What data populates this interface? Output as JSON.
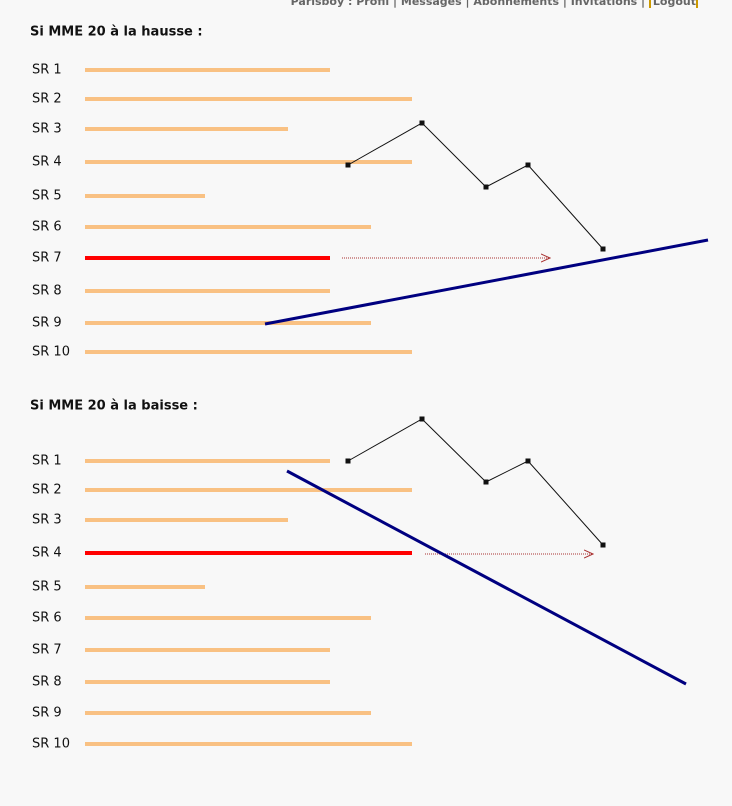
{
  "nav": {
    "user": "Parisboy : Profil",
    "links": [
      "Messages",
      "Abonnements",
      "Invitations",
      "Logout"
    ]
  },
  "sections": [
    {
      "title": "Si MME 20 à la hausse :",
      "labels": [
        "SR 1",
        "SR 2",
        "SR 3",
        "SR 4",
        "SR 5",
        "SR 6",
        "SR 7",
        "SR 8",
        "SR 9",
        "SR 10"
      ]
    },
    {
      "title": "Si MME 20 à la baisse :",
      "labels": [
        "SR 1",
        "SR 2",
        "SR 3",
        "SR 4",
        "SR 5",
        "SR 6",
        "SR 7",
        "SR 8",
        "SR 9",
        "SR 10"
      ]
    }
  ]
}
